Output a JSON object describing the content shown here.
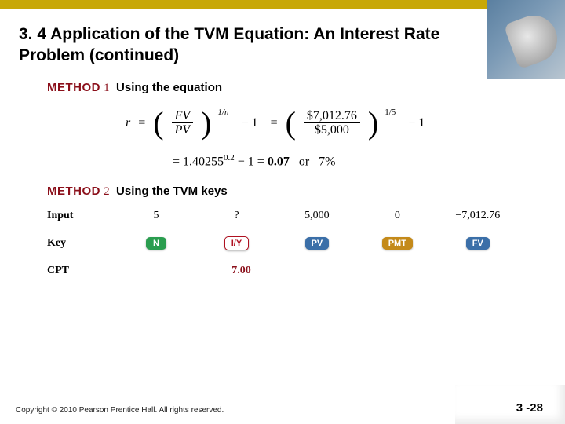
{
  "title": "3. 4 Application of the TVM Equation: An Interest Rate Problem (continued)",
  "method1": {
    "label": "METHOD",
    "num": "1",
    "desc": "Using the equation"
  },
  "equation1": {
    "r": "r",
    "eq": "=",
    "lparen1": "(",
    "rparen1": ")",
    "fv": "FV",
    "pv": "PV",
    "exp1": "1/n",
    "minus1": "− 1",
    "eq2": "=",
    "lparen2": "(",
    "rparen2": ")",
    "fv2": "$7,012.76",
    "pv2": "$5,000",
    "exp2": "1/5",
    "minus2": "− 1"
  },
  "equation2": {
    "text_a": "= 1.40255",
    "exp": "0.2",
    "text_b": "− 1 = ",
    "val": "0.07",
    "or": "or",
    "pct": "7%"
  },
  "method2": {
    "label": "METHOD",
    "num": "2",
    "desc": "Using the TVM keys"
  },
  "tvm": {
    "input_label": "Input",
    "key_label": "Key",
    "cpt_label": "CPT",
    "inputs": {
      "n": "5",
      "iy": "?",
      "pv": "5,000",
      "pmt": "0",
      "fv": "−7,012.76"
    },
    "keys": {
      "n": "N",
      "iy": "I/Y",
      "pv": "PV",
      "pmt": "PMT",
      "fv": "FV"
    },
    "cpt": "7.00"
  },
  "footer": "Copyright © 2010 Pearson Prentice Hall. All rights reserved.",
  "page": "3 -28",
  "colors": {
    "accent": "#8b0f1a",
    "topbar": "#c8a808"
  }
}
